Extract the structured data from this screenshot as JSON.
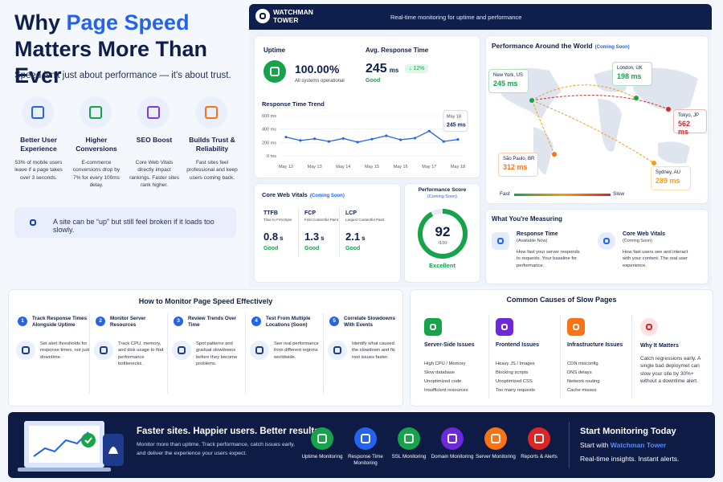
{
  "left": {
    "title_1": "Why ",
    "title_highlight": "Page Speed",
    "title_2": "Matters More Than Ever",
    "subtitle": "Speed isn't just about performance — it's about trust.",
    "reasons": [
      {
        "title": "Better User Experience",
        "text": "53% of mobile users leave if a page takes over 3 seconds.",
        "color": "#2563eb"
      },
      {
        "title": "Higher Conversions",
        "text": "E-commerce conversions drop by 7% for every 100ms delay.",
        "color": "#16a34a"
      },
      {
        "title": "SEO Boost",
        "text": "Core Web Vitals directly impact rankings. Faster sites rank higher.",
        "color": "#7c3aed"
      },
      {
        "title": "Builds Trust & Reliability",
        "text": "Fast sites feel professional and keep users coming back.",
        "color": "#f97316"
      }
    ],
    "callout": "A site can be “up” but still feel broken if it loads too slowly."
  },
  "dashboard": {
    "brand": "WATCHMAN TOWER",
    "tagline": "Real-time monitoring for uptime and performance",
    "uptime": {
      "label": "Uptime",
      "value": "100.00%",
      "note": "All systems operational"
    },
    "response": {
      "label": "Avg. Response Time",
      "value": "245",
      "unit": "ms",
      "change": "↓ 12%",
      "status": "Good"
    },
    "trend": {
      "type": "line",
      "title": "Response Time Trend",
      "color": "#2563eb",
      "categories": [
        "May 12",
        null,
        "May 13",
        null,
        "May 14",
        null,
        "May 15",
        null,
        "May 16",
        null,
        "May 17",
        null,
        "May 18"
      ],
      "values": [
        280,
        230,
        255,
        215,
        260,
        205,
        250,
        300,
        240,
        265,
        370,
        215,
        245
      ],
      "value_labels": [
        null,
        null,
        null,
        null,
        null,
        null,
        null,
        null,
        null,
        null,
        null,
        null,
        "245 ms"
      ],
      "ylim": [
        0,
        600
      ],
      "yticks": [
        {
          "value": 0,
          "label": "0 ms"
        },
        {
          "value": 200,
          "label": "200 ms"
        },
        {
          "value": 400,
          "label": "400 ms"
        },
        {
          "value": 600,
          "label": "600 ms"
        }
      ],
      "grid": true
    },
    "vitals": {
      "title": "Core Web Vitals",
      "tag": "(Coming Soon)",
      "metrics": [
        {
          "name": "TTFB",
          "desc": "Time to First Byte",
          "value": "0.8",
          "unit": "s",
          "status": "Good"
        },
        {
          "name": "FCP",
          "desc": "First Contentful Paint",
          "value": "1.3",
          "unit": "s",
          "status": "Good"
        },
        {
          "name": "LCP",
          "desc": "Largest Contentful Paint",
          "value": "2.1",
          "unit": "s",
          "status": "Good"
        }
      ]
    },
    "score": {
      "title": "Performance Score",
      "tag": "(Coming Soon)",
      "value": 92,
      "max": 100,
      "max_label": "/100",
      "status": "Excellent"
    },
    "world": {
      "title": "Performance Around the World",
      "tag": "(Coming Soon)",
      "cities": [
        {
          "name": "New York, US",
          "value": "245 ms",
          "color": "#16a34a"
        },
        {
          "name": "London, UK",
          "value": "198 ms",
          "color": "#16a34a"
        },
        {
          "name": "Tokyo, JP",
          "value": "562 ms",
          "color": "#dc2626"
        },
        {
          "name": "São Paulo, BR",
          "value": "312 ms",
          "color": "#f97316"
        },
        {
          "name": "Sydney, AU",
          "value": "289 ms",
          "color": "#f59e0b"
        }
      ],
      "legend_fast": "Fast",
      "legend_slow": "Slow"
    },
    "measuring": {
      "title": "What You're Measuring",
      "items": [
        {
          "title": "Response Time",
          "tag": "(Available Now)",
          "text": "How fast your server responds to requests. Your baseline for performance."
        },
        {
          "title": "Core Web Vitals",
          "tag": "(Coming Soon)",
          "text": "How fast users see and interact with your content. The real user experience."
        }
      ]
    }
  },
  "how": {
    "title": "How to Monitor Page Speed Effectively",
    "steps": [
      {
        "num": "1",
        "title": "Track Response Times Alongside Uptime",
        "text": "Set alert thresholds for response times, not just downtime."
      },
      {
        "num": "2",
        "title": "Monitor Server Resources",
        "text": "Track CPU, memory, and disk usage to find performance bottlenecks."
      },
      {
        "num": "3",
        "title": "Review Trends Over Time",
        "text": "Spot patterns and gradual slowdowns before they become problems."
      },
      {
        "num": "4",
        "title": "Test From Multiple Locations (Soon)",
        "text": "See real performance from different regions worldwide."
      },
      {
        "num": "5",
        "title": "Correlate Slowdowns With Events",
        "text": "Identify what caused the slowdown and fix root issues faster."
      }
    ]
  },
  "causes": {
    "title": "Common Causes of Slow Pages",
    "groups": [
      {
        "title": "Server-Side Issues",
        "color": "#16a34a",
        "items": [
          "High CPU / Memory",
          "Slow database",
          "Unoptimized code",
          "Insufficient resources"
        ]
      },
      {
        "title": "Frontend Issues",
        "color": "#6d28d9",
        "items": [
          "Heavy JS / Images",
          "Blocking scripts",
          "Unoptimized CSS",
          "Too many requests"
        ]
      },
      {
        "title": "Infrastructure Issues",
        "color": "#f97316",
        "items": [
          "CDN misconfig",
          "DNS delays",
          "Network routing",
          "Cache misses"
        ]
      }
    ],
    "why": {
      "title": "Why It Matters",
      "text": "Catch regressions early. A single bad deploymet can slow your site by 30%+ without a downtime alert."
    }
  },
  "footer": {
    "headline": "Faster sites. Happier users. Better results.",
    "text": "Monitor more than uptime. Track performance, catch issues early, and deliver the experience your users expect.",
    "features": [
      {
        "name": "Uptime Monitoring",
        "color": "#16a34a"
      },
      {
        "name": "Response Time Monitoring",
        "color": "#2563eb"
      },
      {
        "name": "SSL Monitoring",
        "color": "#16a34a"
      },
      {
        "name": "Domain Monitoring",
        "color": "#6d28d9"
      },
      {
        "name": "Server Monitoring",
        "color": "#f97316"
      },
      {
        "name": "Reports & Alerts",
        "color": "#dc2626"
      }
    ],
    "cta_title": "Start Monitoring Today",
    "cta_line_1": "Start with ",
    "cta_brand": "Watchman Tower",
    "cta_line_2": "Real-time insights. Instant alerts."
  }
}
